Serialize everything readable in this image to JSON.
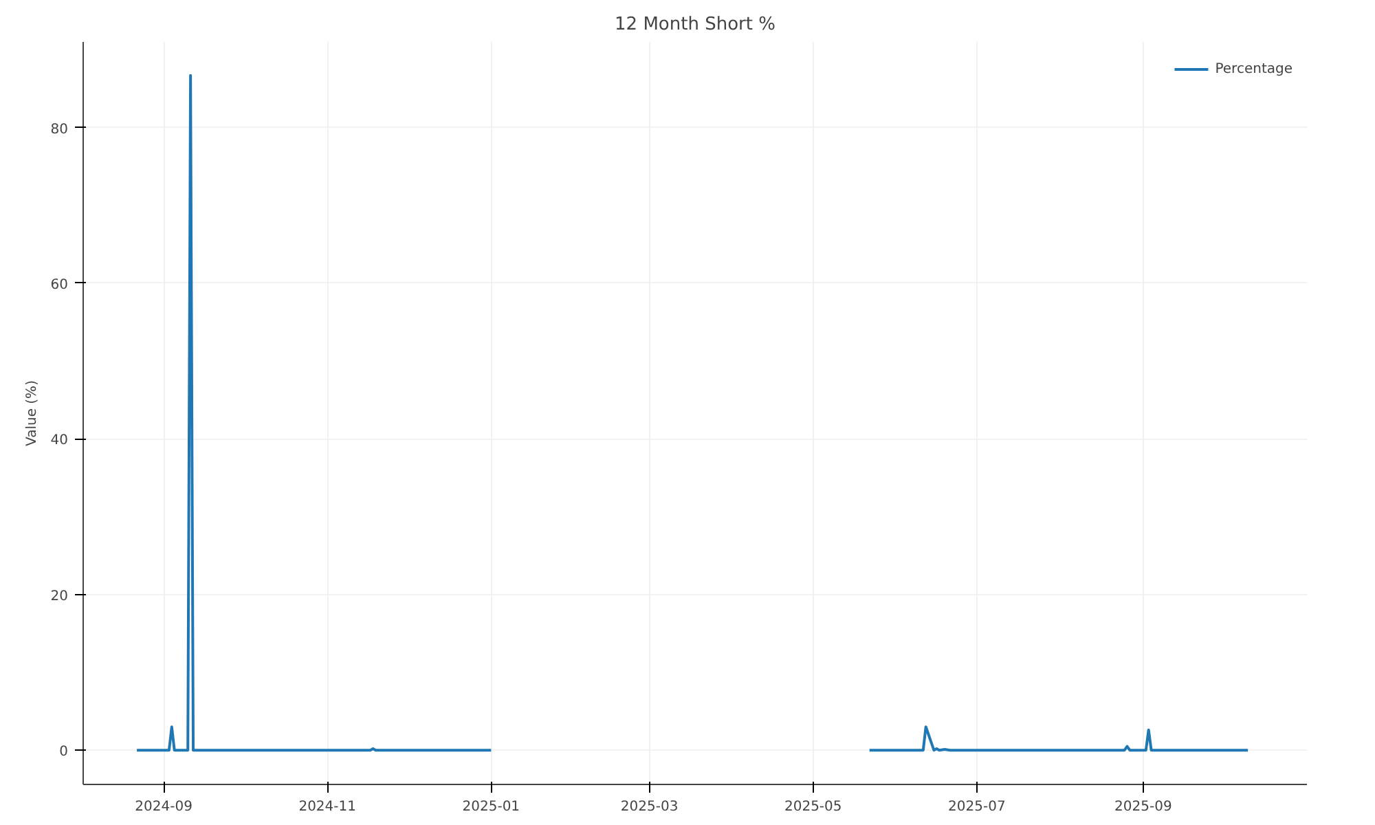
{
  "chart_data": {
    "type": "line",
    "title": "12 Month Short %",
    "ylabel": "Value (%)",
    "x": [
      "2024-08-22",
      "2024-09-03",
      "2024-09-04",
      "2024-09-05",
      "2024-09-10",
      "2024-09-11",
      "2024-09-12",
      "2024-11-17",
      "2024-11-18",
      "2024-11-19",
      "2025-01-01",
      "2025-03-01",
      "2025-05-22",
      "2025-06-11",
      "2025-06-12",
      "2025-06-15",
      "2025-06-16",
      "2025-06-17",
      "2025-06-19",
      "2025-06-21",
      "2025-08-25",
      "2025-08-26",
      "2025-08-27",
      "2025-09-02",
      "2025-09-03",
      "2025-09-04",
      "2025-10-10"
    ],
    "series": [
      {
        "name": "Percentage",
        "color": "#1f77b4",
        "values": [
          0,
          0,
          3.0,
          0,
          0,
          86.7,
          0,
          0,
          0.2,
          0,
          0,
          null,
          0,
          0,
          3.0,
          0,
          0.2,
          0,
          0.1,
          0,
          0,
          0.5,
          0,
          0,
          2.6,
          0,
          0
        ]
      }
    ],
    "xlim": [
      "2024-08-02",
      "2025-11-01"
    ],
    "xticks": [
      {
        "value": "2024-09-01",
        "label": "2024-09"
      },
      {
        "value": "2024-11-01",
        "label": "2024-11"
      },
      {
        "value": "2025-01-01",
        "label": "2025-01"
      },
      {
        "value": "2025-03-01",
        "label": "2025-03"
      },
      {
        "value": "2025-05-01",
        "label": "2025-05"
      },
      {
        "value": "2025-07-01",
        "label": "2025-07"
      },
      {
        "value": "2025-09-01",
        "label": "2025-09"
      }
    ],
    "ylim": [
      -4.4,
      91
    ],
    "yticks": [
      0,
      20,
      40,
      60,
      80
    ],
    "grid": true,
    "legend": "top right",
    "marker": "none",
    "line_style": "solid"
  }
}
